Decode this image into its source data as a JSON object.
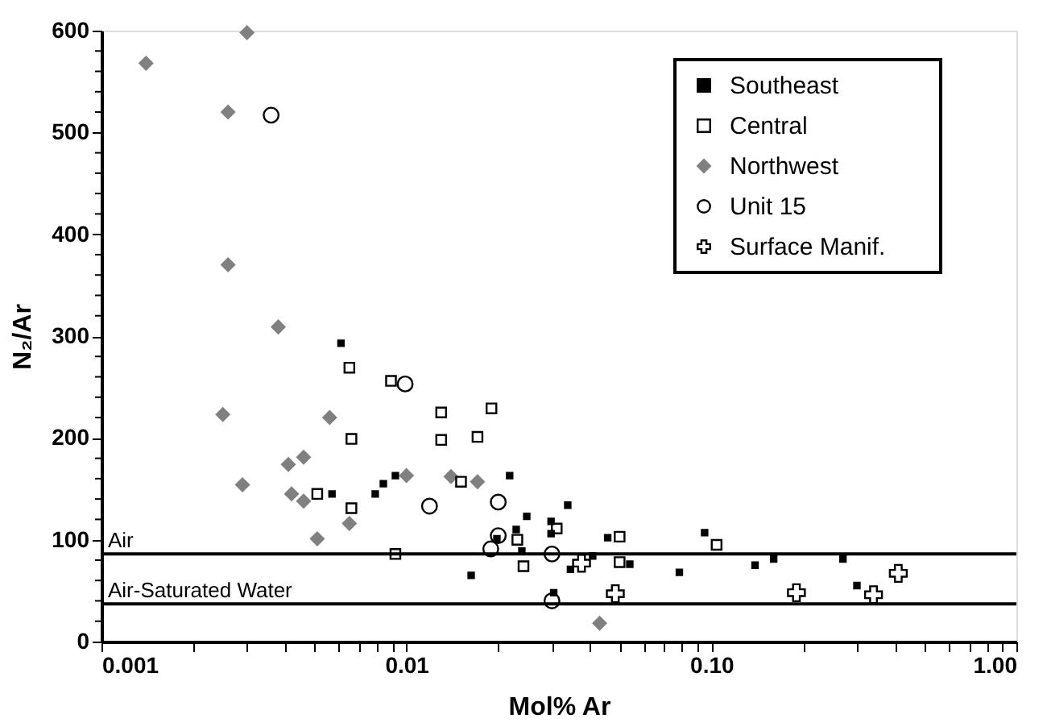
{
  "chart_data": {
    "type": "scatter",
    "xlabel": "Mol% Ar",
    "ylabel": "N₂/Ar",
    "log": "x",
    "xlim": [
      0.001,
      1
    ],
    "ylim": [
      0,
      600
    ],
    "xticks": [
      {
        "value": 0.001,
        "label": "0.001"
      },
      {
        "value": 0.002,
        "label": null
      },
      {
        "value": 0.003,
        "label": null
      },
      {
        "value": 0.004,
        "label": null
      },
      {
        "value": 0.005,
        "label": null
      },
      {
        "value": 0.006,
        "label": null
      },
      {
        "value": 0.007,
        "label": null
      },
      {
        "value": 0.008,
        "label": null
      },
      {
        "value": 0.009,
        "label": null
      },
      {
        "value": 0.01,
        "label": "0.01"
      },
      {
        "value": 0.02,
        "label": null
      },
      {
        "value": 0.03,
        "label": null
      },
      {
        "value": 0.04,
        "label": null
      },
      {
        "value": 0.05,
        "label": null
      },
      {
        "value": 0.06,
        "label": null
      },
      {
        "value": 0.07,
        "label": null
      },
      {
        "value": 0.08,
        "label": null
      },
      {
        "value": 0.09,
        "label": null
      },
      {
        "value": 0.1,
        "label": "0.10"
      },
      {
        "value": 0.2,
        "label": null
      },
      {
        "value": 0.3,
        "label": null
      },
      {
        "value": 0.4,
        "label": null
      },
      {
        "value": 0.5,
        "label": null
      },
      {
        "value": 0.6,
        "label": null
      },
      {
        "value": 0.7,
        "label": null
      },
      {
        "value": 0.8,
        "label": null
      },
      {
        "value": 0.9,
        "label": null
      },
      {
        "value": 1,
        "label": "1.00"
      }
    ],
    "yticks": [
      0,
      {
        "value": 20,
        "label": null
      },
      {
        "value": 40,
        "label": null
      },
      {
        "value": 60,
        "label": null
      },
      {
        "value": 80,
        "label": null
      },
      100,
      {
        "value": 120,
        "label": null
      },
      {
        "value": 140,
        "label": null
      },
      {
        "value": 160,
        "label": null
      },
      {
        "value": 180,
        "label": null
      },
      200,
      {
        "value": 220,
        "label": null
      },
      {
        "value": 240,
        "label": null
      },
      {
        "value": 260,
        "label": null
      },
      {
        "value": 280,
        "label": null
      },
      300,
      {
        "value": 320,
        "label": null
      },
      {
        "value": 340,
        "label": null
      },
      {
        "value": 360,
        "label": null
      },
      {
        "value": 380,
        "label": null
      },
      400,
      {
        "value": 420,
        "label": null
      },
      {
        "value": 440,
        "label": null
      },
      {
        "value": 460,
        "label": null
      },
      {
        "value": 480,
        "label": null
      },
      500,
      {
        "value": 520,
        "label": null
      },
      {
        "value": 540,
        "label": null
      },
      {
        "value": 560,
        "label": null
      },
      {
        "value": 580,
        "label": null
      },
      600
    ],
    "grid": false,
    "legend": "top right",
    "ref_lines": [
      {
        "axis": "y",
        "value": 86,
        "label": "Air",
        "color": "#000000"
      },
      {
        "axis": "y",
        "value": 37,
        "label": "Air-Saturated Water",
        "color": "#000000"
      }
    ],
    "series": [
      {
        "name": "Southeast",
        "color": "#000000",
        "marker": "square",
        "x": [
          0.0061,
          0.0057,
          0.0079,
          0.0084,
          0.0092,
          0.0218,
          0.0248,
          0.0338,
          0.0229,
          0.0198,
          0.0239,
          0.0163,
          0.0298,
          0.0298,
          0.0304,
          0.0345,
          0.0408,
          0.0457,
          0.054,
          0.0785,
          0.095,
          0.139,
          0.16,
          0.27,
          0.3
        ],
        "values": [
          293,
          145,
          145,
          155,
          163,
          163,
          123,
          134,
          110,
          101,
          89,
          65,
          118,
          106,
          48,
          71,
          84,
          102,
          76,
          68,
          107,
          75,
          81,
          81,
          55
        ]
      },
      {
        "name": "Central",
        "color": "#000000",
        "marker": "square",
        "x": [
          0.0065,
          0.0089,
          0.0066,
          0.0051,
          0.0066,
          0.0092,
          0.013,
          0.019,
          0.013,
          0.0171,
          0.0151,
          0.0231,
          0.0242,
          0.0311,
          0.05,
          0.05,
          0.104
        ],
        "values": [
          269,
          256,
          199,
          145,
          131,
          86,
          225,
          229,
          198,
          201,
          157,
          100,
          74,
          111,
          103,
          78,
          95
        ]
      },
      {
        "name": "Northwest",
        "color": "#808080",
        "marker": "diamond",
        "x": [
          0.0014,
          0.003,
          0.0026,
          0.0026,
          0.0038,
          0.0025,
          0.0029,
          0.0056,
          0.0041,
          0.0046,
          0.0042,
          0.0046,
          0.0051,
          0.0065,
          0.01,
          0.014,
          0.0171,
          0.043
        ],
        "values": [
          568,
          598,
          520,
          370,
          309,
          223,
          154,
          220,
          174,
          181,
          145,
          138,
          101,
          116,
          163,
          162,
          157,
          18
        ]
      },
      {
        "name": "Unit 15",
        "color": "#000000",
        "marker": "circle",
        "x": [
          0.0036,
          0.0099,
          0.0119,
          0.02,
          0.02,
          0.0189,
          0.03,
          0.03
        ],
        "values": [
          517,
          253,
          133,
          137,
          104,
          91,
          86,
          40
        ]
      },
      {
        "name": "Surface Manif.",
        "color": "#000000",
        "marker": "cross",
        "x": [
          0.0375,
          0.0484,
          0.19,
          0.34,
          0.41
        ],
        "values": [
          77,
          47,
          48,
          46,
          67
        ]
      }
    ]
  }
}
